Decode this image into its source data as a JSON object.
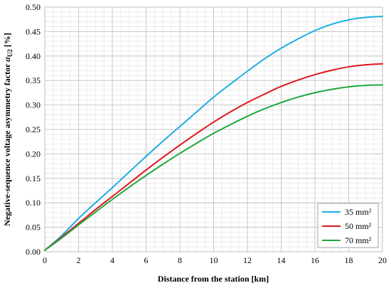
{
  "chart_data": {
    "type": "line",
    "xlabel": "Distance from the station [km]",
    "ylabel_prefix": "Negative-sequence voltage asymmetry factor ",
    "ylabel_symbol": "α",
    "ylabel_subscript": "U2",
    "ylabel_suffix": " [%]",
    "xlim": [
      0,
      20
    ],
    "ylim": [
      0,
      0.5
    ],
    "x_ticks": [
      "0",
      "2",
      "4",
      "6",
      "8",
      "10",
      "12",
      "14",
      "16",
      "18",
      "20"
    ],
    "y_ticks": [
      "0.00",
      "0.05",
      "0.10",
      "0.15",
      "0.20",
      "0.25",
      "0.30",
      "0.35",
      "0.40",
      "0.45",
      "0.50"
    ],
    "grid": true,
    "legend_position": "bottom-right",
    "x": [
      0,
      1,
      2,
      3,
      4,
      5,
      6,
      7,
      8,
      9,
      10,
      11,
      12,
      13,
      14,
      15,
      16,
      17,
      18,
      19,
      20
    ],
    "series": [
      {
        "name": "35 mm²",
        "color": "#1BAEE4",
        "values": [
          0.003,
          0.033,
          0.068,
          0.1,
          0.131,
          0.163,
          0.195,
          0.226,
          0.256,
          0.286,
          0.316,
          0.343,
          0.369,
          0.394,
          0.416,
          0.435,
          0.452,
          0.465,
          0.474,
          0.479,
          0.481
        ]
      },
      {
        "name": "50 mm²",
        "color": "#E0171E",
        "values": [
          0.003,
          0.03,
          0.058,
          0.086,
          0.113,
          0.14,
          0.167,
          0.193,
          0.218,
          0.242,
          0.265,
          0.286,
          0.305,
          0.322,
          0.338,
          0.351,
          0.362,
          0.371,
          0.378,
          0.382,
          0.384
        ]
      },
      {
        "name": "70 mm²",
        "color": "#20A83E",
        "values": [
          0.003,
          0.028,
          0.055,
          0.081,
          0.107,
          0.132,
          0.156,
          0.179,
          0.201,
          0.222,
          0.242,
          0.26,
          0.277,
          0.292,
          0.305,
          0.316,
          0.325,
          0.332,
          0.337,
          0.34,
          0.341
        ]
      }
    ]
  }
}
